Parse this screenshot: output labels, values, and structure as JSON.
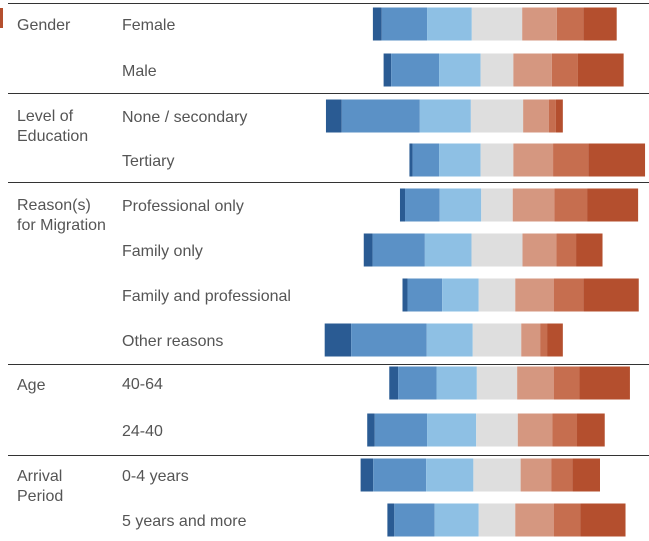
{
  "chart_data": {
    "type": "bar",
    "subtype": "diverging-stacked-100",
    "title": "",
    "xlabel": "",
    "ylabel": "",
    "legend": "none",
    "grid": false,
    "xlim": [
      -40,
      40
    ],
    "segment_colors": [
      "#2a5b93",
      "#5b91c6",
      "#8ec0e4",
      "#dedede",
      "#d59780",
      "#c66e4f",
      "#b44f2e"
    ],
    "groups": [
      {
        "label": "Gender",
        "rows": [
          {
            "label": "Female",
            "values": [
              1.4,
              7.2,
              7.1,
              8.0,
              5.5,
              4.2,
              5.3
            ]
          },
          {
            "label": "Male",
            "values": [
              1.2,
              7.6,
              6.6,
              5.2,
              6.1,
              4.1,
              7.3
            ]
          }
        ]
      },
      {
        "label": "Level of Education",
        "rows": [
          {
            "label": "None / secondary",
            "values": [
              2.5,
              12.4,
              8.1,
              8.3,
              4.1,
              1.1,
              1.1
            ]
          },
          {
            "label": "Tertiary",
            "values": [
              0.5,
              4.2,
              6.6,
              5.2,
              6.3,
              5.6,
              9.0
            ]
          }
        ]
      },
      {
        "label": "Reason(s) for Migration",
        "rows": [
          {
            "label": "Professional only",
            "values": [
              0.8,
              5.5,
              6.6,
              5.0,
              6.6,
              5.2,
              8.1
            ]
          },
          {
            "label": "Family only",
            "values": [
              1.4,
              8.3,
              7.4,
              8.1,
              5.4,
              3.1,
              4.2
            ]
          },
          {
            "label": "Family and professional",
            "values": [
              0.8,
              5.5,
              5.8,
              5.8,
              6.1,
              4.7,
              8.8
            ]
          },
          {
            "label": "Other reasons",
            "values": [
              4.2,
              12.0,
              7.3,
              7.7,
              3.0,
              1.1,
              2.5
            ]
          }
        ]
      },
      {
        "label": "Age",
        "rows": [
          {
            "label": "40-64",
            "values": [
              1.4,
              6.1,
              6.4,
              6.4,
              5.8,
              4.1,
              8.0
            ]
          },
          {
            "label": "24-40",
            "values": [
              1.2,
              8.3,
              7.8,
              6.6,
              5.5,
              3.9,
              4.4
            ]
          }
        ]
      },
      {
        "label": "Arrival Period",
        "rows": [
          {
            "label": "0-4 years",
            "values": [
              2.0,
              8.4,
              7.5,
              7.5,
              4.9,
              3.3,
              4.4
            ]
          },
          {
            "label": "5 years and more",
            "values": [
              1.1,
              6.4,
              7.0,
              5.8,
              6.1,
              4.2,
              7.2
            ]
          }
        ]
      }
    ]
  }
}
